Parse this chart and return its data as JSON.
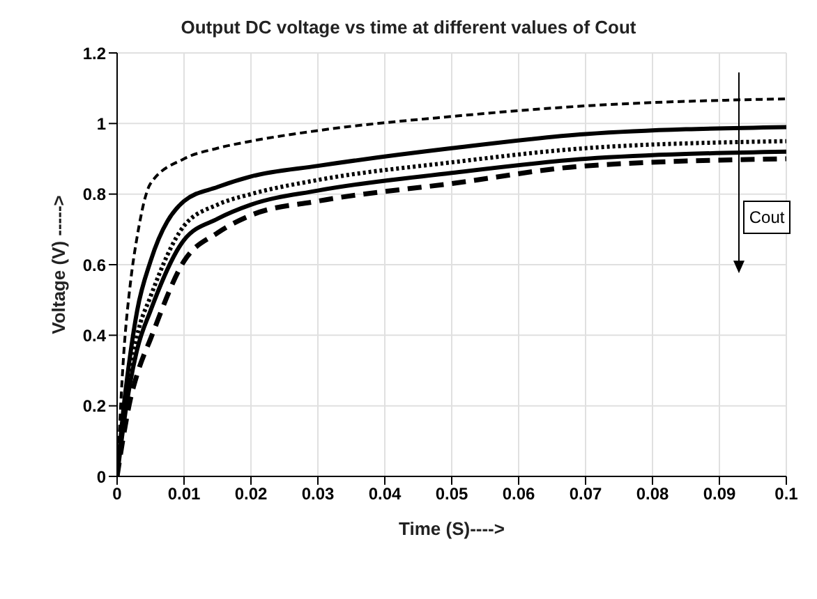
{
  "chart_data": {
    "type": "line",
    "title": "Output DC voltage vs time at different values of Cout",
    "xlabel": "Time (S)---->",
    "ylabel": "Voltage (V) ----->",
    "annotations": [
      "Cout"
    ],
    "x": [
      0,
      0.001,
      0.002,
      0.003,
      0.005,
      0.01,
      0.015,
      0.02,
      0.03,
      0.05,
      0.07,
      0.1
    ],
    "series": [
      {
        "color": "#000000",
        "line_style": "dashed",
        "values": [
          0,
          0.35,
          0.55,
          0.68,
          0.83,
          0.9,
          0.93,
          0.95,
          0.98,
          1.02,
          1.05,
          1.07
        ]
      },
      {
        "color": "#000000",
        "line_style": "solid",
        "values": [
          0,
          0.2,
          0.35,
          0.47,
          0.61,
          0.78,
          0.82,
          0.85,
          0.88,
          0.93,
          0.97,
          0.99
        ]
      },
      {
        "color": "#000000",
        "line_style": "dotted",
        "values": [
          0,
          0.17,
          0.3,
          0.4,
          0.51,
          0.71,
          0.77,
          0.8,
          0.84,
          0.89,
          0.93,
          0.95
        ]
      },
      {
        "color": "#000000",
        "line_style": "solid",
        "values": [
          0,
          0.15,
          0.27,
          0.36,
          0.47,
          0.67,
          0.73,
          0.77,
          0.81,
          0.86,
          0.9,
          0.92
        ]
      },
      {
        "color": "#000000",
        "line_style": "dashed",
        "values": [
          0,
          0.12,
          0.22,
          0.29,
          0.39,
          0.61,
          0.69,
          0.74,
          0.78,
          0.83,
          0.88,
          0.9
        ]
      }
    ],
    "xlim": [
      0,
      0.1
    ],
    "xticks": [
      0,
      0.01,
      0.02,
      0.03,
      0.04,
      0.05,
      0.06,
      0.07,
      0.08,
      0.09,
      0.1
    ],
    "ylim": [
      0,
      1.2
    ],
    "yticks": [
      0,
      0.2,
      0.4,
      0.6,
      0.8,
      1,
      1.2
    ],
    "grid": true,
    "legend": false,
    "marker": "none"
  }
}
